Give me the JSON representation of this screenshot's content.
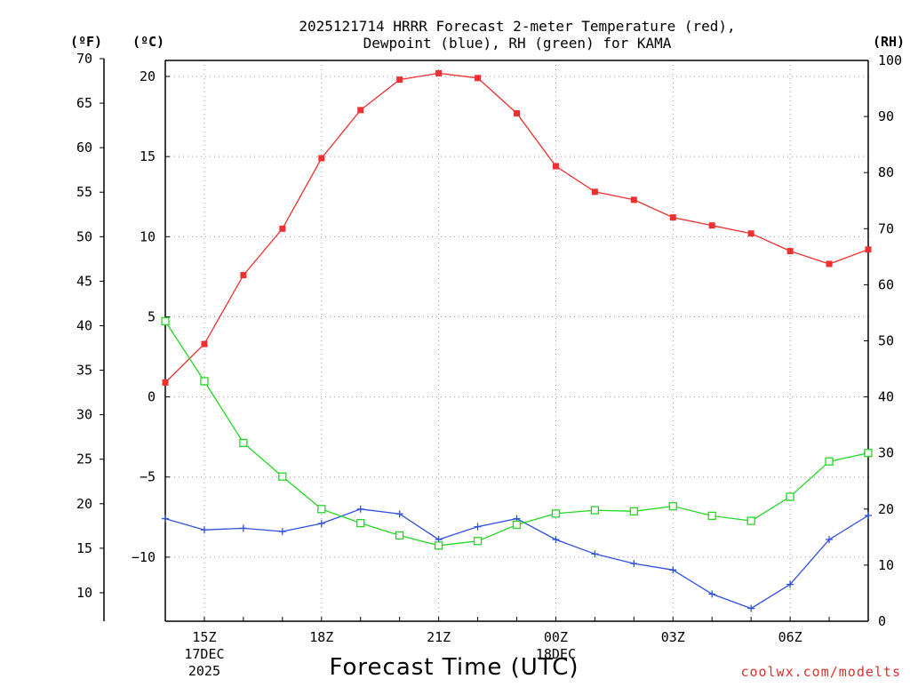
{
  "chart_data": {
    "type": "line",
    "title": [
      "2025121714 HRRR Forecast 2-meter Temperature (red),",
      "Dewpoint (blue), RH (green) for KAMA"
    ],
    "xlabel": "Forecast Time (UTC)",
    "credit": "coolwx.com/modelts",
    "units": {
      "fahrenheit": "(ºF)",
      "celsius": "(ºC)",
      "rh": "(RH)"
    },
    "x_hours": [
      14,
      15,
      16,
      17,
      18,
      19,
      20,
      21,
      22,
      23,
      24,
      25,
      26,
      27,
      28,
      29,
      30,
      31,
      32
    ],
    "x_ticks": [
      {
        "hour": 15,
        "label": "15Z",
        "sub": [
          "17DEC",
          "2025"
        ]
      },
      {
        "hour": 18,
        "label": "18Z",
        "sub": []
      },
      {
        "hour": 21,
        "label": "21Z",
        "sub": []
      },
      {
        "hour": 24,
        "label": "00Z",
        "sub": [
          "18DEC"
        ]
      },
      {
        "hour": 27,
        "label": "03Z",
        "sub": []
      },
      {
        "hour": 30,
        "label": "06Z",
        "sub": []
      }
    ],
    "celsius_axis": {
      "range": [
        -14,
        21
      ],
      "ticks": [
        20,
        15,
        10,
        5,
        0,
        -5,
        -10
      ]
    },
    "fahrenheit_axis": {
      "range": [
        6.8,
        69.8
      ],
      "ticks": [
        70,
        65,
        60,
        55,
        50,
        45,
        40,
        35,
        30,
        25,
        20,
        15,
        10
      ]
    },
    "rh_axis": {
      "range": [
        0,
        100
      ],
      "ticks": [
        100,
        90,
        80,
        70,
        60,
        50,
        40,
        30,
        20,
        10,
        0
      ]
    },
    "series": [
      {
        "name": "2-meter Temperature",
        "axis": "celsius",
        "color": "#ef3030",
        "marker": "filled-square",
        "values": [
          0.9,
          3.3,
          7.6,
          10.5,
          14.9,
          17.9,
          19.8,
          20.2,
          19.9,
          17.7,
          14.4,
          12.8,
          12.3,
          11.2,
          10.7,
          10.2,
          9.1,
          8.3,
          9.2
        ]
      },
      {
        "name": "Dewpoint",
        "axis": "celsius",
        "color": "#2f4fe0",
        "marker": "plus",
        "values": [
          -7.6,
          -8.3,
          -8.2,
          -8.4,
          -7.9,
          -7.0,
          -7.3,
          -8.9,
          -8.1,
          -7.6,
          -8.9,
          -9.8,
          -10.4,
          -10.8,
          -12.3,
          -13.2,
          -11.7,
          -8.9,
          -7.4
        ]
      },
      {
        "name": "RH",
        "axis": "rh",
        "color": "#22d822",
        "marker": "open-square",
        "values": [
          53.5,
          42.8,
          31.8,
          25.8,
          20.0,
          17.5,
          15.3,
          13.5,
          14.3,
          17.2,
          19.2,
          19.8,
          19.6,
          20.5,
          18.8,
          17.9,
          22.2,
          28.5,
          30.0
        ]
      }
    ]
  }
}
